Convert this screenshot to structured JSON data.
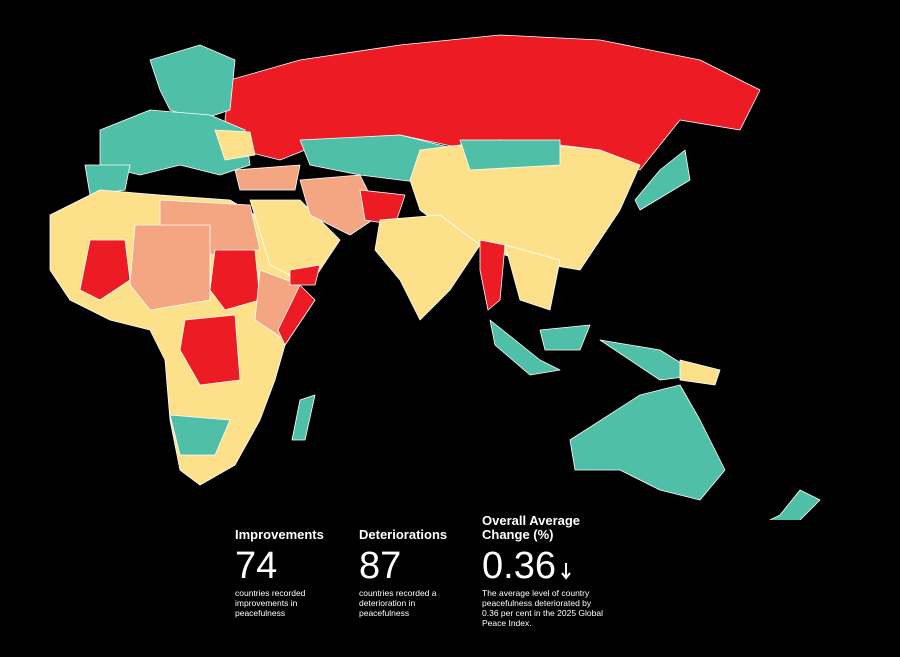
{
  "stats": [
    {
      "title": "Improvements",
      "value": 74,
      "description": "countries recorded improvements in peacefulness"
    },
    {
      "title": "Deteriorations",
      "value": 87,
      "description": "countries recorded a deterioration in peacefulness"
    },
    {
      "title": "Overall Average Change (%)",
      "value": 0.36,
      "description": "The average level of country peacefulness deteriorated by 0.36 per cent in the 2025 Global Peace Index."
    }
  ]
}
